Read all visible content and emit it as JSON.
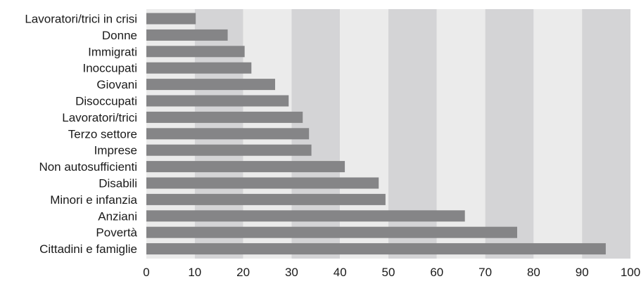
{
  "chart_data": {
    "type": "bar",
    "orientation": "horizontal",
    "categories": [
      "Lavoratori/trici in crisi",
      "Donne",
      "Immigrati",
      "Inoccupati",
      "Giovani",
      "Disoccupati",
      "Lavoratori/trici",
      "Terzo settore",
      "Imprese",
      "Non autosufficienti",
      "Disabili",
      "Minori e infanzia",
      "Anziani",
      "Povertà",
      "Cittadini e famiglie"
    ],
    "values": [
      10.2,
      16.8,
      20.3,
      21.7,
      26.6,
      29.4,
      32.3,
      33.6,
      34.1,
      41.0,
      48.0,
      49.4,
      65.8,
      76.6,
      94.9
    ],
    "title": "",
    "xlabel": "",
    "ylabel": "",
    "xlim": [
      0,
      100
    ],
    "xticks": [
      "0",
      "10",
      "20",
      "30",
      "40",
      "50",
      "60",
      "70",
      "80",
      "90",
      "100"
    ],
    "grid": "alternating vertical bands",
    "legend": "none",
    "colors": {
      "bar": "#858587",
      "band_light": "#ebebeb",
      "band_dark": "#d4d4d6",
      "text": "#1a1a1a"
    }
  }
}
